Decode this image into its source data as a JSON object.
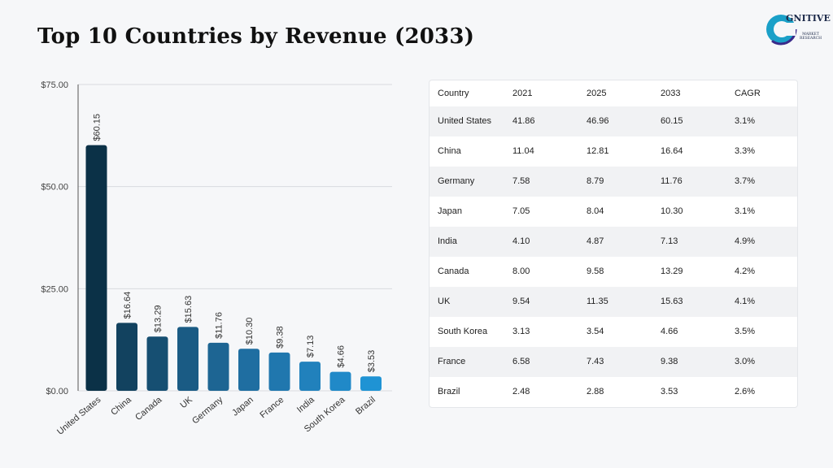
{
  "page": {
    "title": "Top 10 Countries by Revenue (2033)",
    "logo": {
      "main": "C",
      "text": "GNITIVE",
      "sub": [
        "MARKET",
        "RESEARCH"
      ]
    }
  },
  "colors": {
    "bar_gradient": [
      "#0b3147",
      "#12425f",
      "#164f72",
      "#1a5b84",
      "#1d6593",
      "#1f6ea1",
      "#2077ae",
      "#2181bc",
      "#2089c8",
      "#1f93d4"
    ],
    "grid": "#d9dbdf"
  },
  "chart_data": {
    "type": "bar",
    "title": "",
    "xlabel": "",
    "ylabel": "",
    "categories": [
      "United States",
      "China",
      "Canada",
      "UK",
      "Germany",
      "Japan",
      "France",
      "India",
      "South Korea",
      "Brazil"
    ],
    "values": [
      60.15,
      16.64,
      13.29,
      15.63,
      11.76,
      10.3,
      9.38,
      7.13,
      4.66,
      3.53
    ],
    "value_labels": [
      "$60.15",
      "$16.64",
      "$13.29",
      "$15.63",
      "$11.76",
      "$10.30",
      "$9.38",
      "$7.13",
      "$4.66",
      "$3.53"
    ],
    "yticks": [
      0,
      25,
      50,
      75
    ],
    "ytick_labels": [
      "$0.00",
      "$25.00",
      "$50.00",
      "$75.00"
    ],
    "ylim": [
      0,
      75
    ],
    "grid": true
  },
  "table": {
    "headers": [
      "Country",
      "2021",
      "2025",
      "2033",
      "CAGR"
    ],
    "rows": [
      [
        "United States",
        "41.86",
        "46.96",
        "60.15",
        "3.1%"
      ],
      [
        "China",
        "11.04",
        "12.81",
        "16.64",
        "3.3%"
      ],
      [
        "Germany",
        "7.58",
        "8.79",
        "11.76",
        "3.7%"
      ],
      [
        "Japan",
        "7.05",
        "8.04",
        "10.30",
        "3.1%"
      ],
      [
        "India",
        "4.10",
        "4.87",
        "7.13",
        "4.9%"
      ],
      [
        "Canada",
        "8.00",
        "9.58",
        "13.29",
        "4.2%"
      ],
      [
        "UK",
        "9.54",
        "11.35",
        "15.63",
        "4.1%"
      ],
      [
        "South Korea",
        "3.13",
        "3.54",
        "4.66",
        "3.5%"
      ],
      [
        "France",
        "6.58",
        "7.43",
        "9.38",
        "3.0%"
      ],
      [
        "Brazil",
        "2.48",
        "2.88",
        "3.53",
        "2.6%"
      ]
    ]
  }
}
